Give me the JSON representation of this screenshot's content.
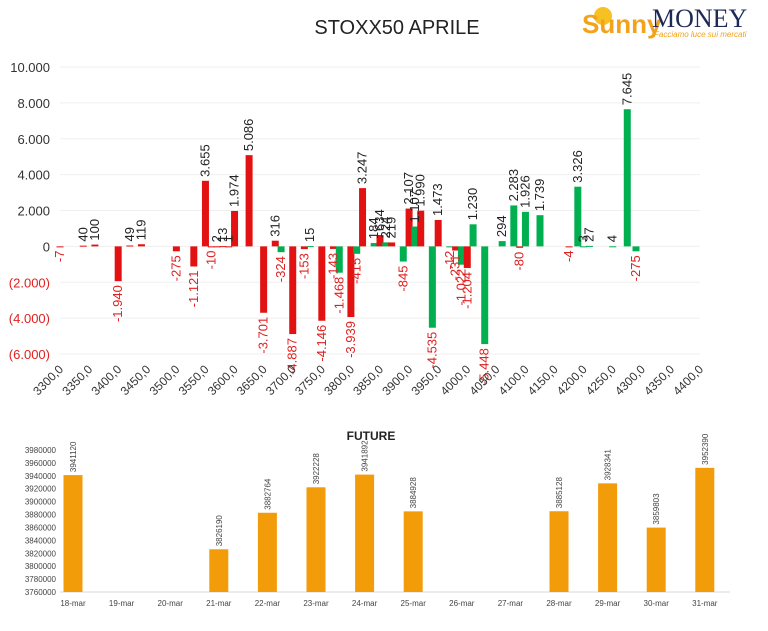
{
  "logo": {
    "word1": "Sunny",
    "word2": "MONEY",
    "tagline": "Facciamo luce sui mercati",
    "colors": {
      "sunny": "#f3a21b",
      "money": "#1d2a57",
      "tagline": "#f3a21b"
    }
  },
  "chart_data": [
    {
      "type": "bar",
      "title": "STOXX50 APRILE",
      "categories": [
        "3300,0",
        "3350,0",
        "3400,0",
        "3450,0",
        "3500,0",
        "3550,0",
        "3600,0",
        "3650,0",
        "3700,0",
        "3750,0",
        "3800,0",
        "3850,0",
        "3900,0",
        "3950,0",
        "4000,0",
        "4050,0",
        "4100,0",
        "4150,0",
        "4200,0",
        "4250,0",
        "4300,0",
        "4350,0",
        "4400,0"
      ],
      "ylim": [
        -6000,
        10000
      ],
      "ytick_labels": [
        "10.000",
        "8.000",
        "6.000",
        "4.000",
        "2.000",
        "0",
        "(2.000)",
        "(4.000)",
        "(6.000)"
      ],
      "ytick_values": [
        10000,
        8000,
        6000,
        4000,
        2000,
        0,
        -2000,
        -4000,
        -6000
      ],
      "grid": true,
      "bars": [
        {
          "x": 3300,
          "value": -7,
          "label": "-7",
          "color": "#e31212"
        },
        {
          "x": 3340,
          "value": 40,
          "label": "40",
          "color": "#e31212"
        },
        {
          "x": 3360,
          "value": 100,
          "label": "100",
          "color": "#e31212"
        },
        {
          "x": 3400,
          "value": -1940,
          "label": "-1.940",
          "color": "#e31212"
        },
        {
          "x": 3420,
          "value": 49,
          "label": "49",
          "color": "#e31212"
        },
        {
          "x": 3440,
          "value": 119,
          "label": "119",
          "color": "#e31212"
        },
        {
          "x": 3500,
          "value": -275,
          "label": "-275",
          "color": "#e31212"
        },
        {
          "x": 3530,
          "value": -1121,
          "label": "-1.121",
          "color": "#e31212"
        },
        {
          "x": 3550,
          "value": 3655,
          "label": "3.655",
          "color": "#e31212"
        },
        {
          "x": 3560,
          "value": -10,
          "label": "-10",
          "color": "#e31212"
        },
        {
          "x": 3570,
          "value": 2,
          "label": "2",
          "color": "#e31212"
        },
        {
          "x": 3580,
          "value": 13,
          "label": "13",
          "color": "#e31212"
        },
        {
          "x": 3590,
          "value": 1,
          "label": "1",
          "color": "#e31212"
        },
        {
          "x": 3600,
          "value": 1974,
          "label": "1.974",
          "color": "#e31212"
        },
        {
          "x": 3625,
          "value": 5086,
          "label": "5.086",
          "color": "#e31212"
        },
        {
          "x": 3650,
          "value": -3701,
          "label": "-3.701",
          "color": "#e31212"
        },
        {
          "x": 3670,
          "value": 316,
          "label": "316",
          "color": "#e31212"
        },
        {
          "x": 3680,
          "value": -324,
          "label": "-324",
          "color": "#00b050"
        },
        {
          "x": 3700,
          "value": -4887,
          "label": "-4.887",
          "color": "#e31212"
        },
        {
          "x": 3720,
          "value": -153,
          "label": "-153",
          "color": "#e31212"
        },
        {
          "x": 3730,
          "value": 15,
          "label": "15",
          "color": "#00b050"
        },
        {
          "x": 3750,
          "value": -4146,
          "label": "-4.146",
          "color": "#e31212"
        },
        {
          "x": 3770,
          "value": -143,
          "label": "-143",
          "color": "#e31212"
        },
        {
          "x": 3780,
          "value": -1468,
          "label": "-1.468",
          "color": "#00b050"
        },
        {
          "x": 3800,
          "value": -3939,
          "label": "-3.939",
          "color": "#e31212"
        },
        {
          "x": 3810,
          "value": -415,
          "label": "-415",
          "color": "#00b050"
        },
        {
          "x": 3820,
          "value": 3247,
          "label": "3.247",
          "color": "#e31212"
        },
        {
          "x": 3840,
          "value": 184,
          "label": "184",
          "color": "#00b050"
        },
        {
          "x": 3850,
          "value": 634,
          "label": "634",
          "color": "#e31212"
        },
        {
          "x": 3860,
          "value": 224,
          "label": "224",
          "color": "#00b050"
        },
        {
          "x": 3870,
          "value": 219,
          "label": "219",
          "color": "#e31212"
        },
        {
          "x": 3890,
          "value": -845,
          "label": "-845",
          "color": "#00b050"
        },
        {
          "x": 3900,
          "value": 2107,
          "label": "2.107",
          "color": "#e31212"
        },
        {
          "x": 3910,
          "value": 1107,
          "label": "1.107",
          "color": "#00b050"
        },
        {
          "x": 3920,
          "value": 1990,
          "label": "1.990",
          "color": "#e31212"
        },
        {
          "x": 3940,
          "value": -4535,
          "label": "-4.535",
          "color": "#00b050"
        },
        {
          "x": 3950,
          "value": 1473,
          "label": "1.473",
          "color": "#e31212"
        },
        {
          "x": 3970,
          "value": -12,
          "label": "-12",
          "color": "#00b050"
        },
        {
          "x": 3980,
          "value": -231,
          "label": "-231",
          "color": "#e31212"
        },
        {
          "x": 3990,
          "value": -1022,
          "label": "-1.022",
          "color": "#00b050"
        },
        {
          "x": 4000,
          "value": -1204,
          "label": "-1.204",
          "color": "#e31212"
        },
        {
          "x": 4010,
          "value": 1230,
          "label": "1.230",
          "color": "#00b050"
        },
        {
          "x": 4030,
          "value": -5448,
          "label": "-5.448",
          "color": "#00b050"
        },
        {
          "x": 4060,
          "value": 294,
          "label": "294",
          "color": "#00b050"
        },
        {
          "x": 4080,
          "value": 2283,
          "label": "2.283",
          "color": "#00b050"
        },
        {
          "x": 4090,
          "value": -80,
          "label": "-80",
          "color": "#e31212"
        },
        {
          "x": 4100,
          "value": 1926,
          "label": "1.926",
          "color": "#00b050"
        },
        {
          "x": 4125,
          "value": 1739,
          "label": "1.739",
          "color": "#00b050"
        },
        {
          "x": 4175,
          "value": -4,
          "label": "-4",
          "color": "#e31212"
        },
        {
          "x": 4190,
          "value": 3326,
          "label": "3.326",
          "color": "#00b050"
        },
        {
          "x": 4200,
          "value": 3,
          "label": "3",
          "color": "#00b050"
        },
        {
          "x": 4210,
          "value": 27,
          "label": "27",
          "color": "#00b050"
        },
        {
          "x": 4250,
          "value": 4,
          "label": "4",
          "color": "#00b050"
        },
        {
          "x": 4275,
          "value": 7645,
          "label": "7.645",
          "color": "#00b050"
        },
        {
          "x": 4290,
          "value": -275,
          "label": "-275",
          "color": "#00b050"
        }
      ],
      "colors": {
        "negative_label": "#e02020",
        "positive_label": "#222222"
      }
    },
    {
      "type": "bar",
      "title": "FUTURE",
      "categories": [
        "18-mar",
        "19-mar",
        "20-mar",
        "21-mar",
        "22-mar",
        "23-mar",
        "24-mar",
        "25-mar",
        "26-mar",
        "27-mar",
        "28-mar",
        "29-mar",
        "30-mar",
        "31-mar"
      ],
      "values": [
        3941120,
        null,
        null,
        3826190,
        3882764,
        3922228,
        3941892,
        3884928,
        null,
        null,
        3885128,
        3928341,
        3859803,
        3952390
      ],
      "value_labels": [
        "3941120",
        "",
        "",
        "3826190",
        "3882764",
        "3922228",
        "3941892",
        "3884928",
        "",
        "",
        "3885128",
        "3928341",
        "3859803",
        "3952390"
      ],
      "ylim": [
        3760000,
        3980000
      ],
      "ytick_labels": [
        "3980000",
        "3960000",
        "3940000",
        "3920000",
        "3900000",
        "3880000",
        "3860000",
        "3840000",
        "3820000",
        "3800000",
        "3780000",
        "3760000"
      ],
      "ytick_values": [
        3980000,
        3960000,
        3940000,
        3920000,
        3900000,
        3880000,
        3860000,
        3840000,
        3820000,
        3800000,
        3780000,
        3760000
      ],
      "bar_color": "#f39c0a"
    }
  ]
}
